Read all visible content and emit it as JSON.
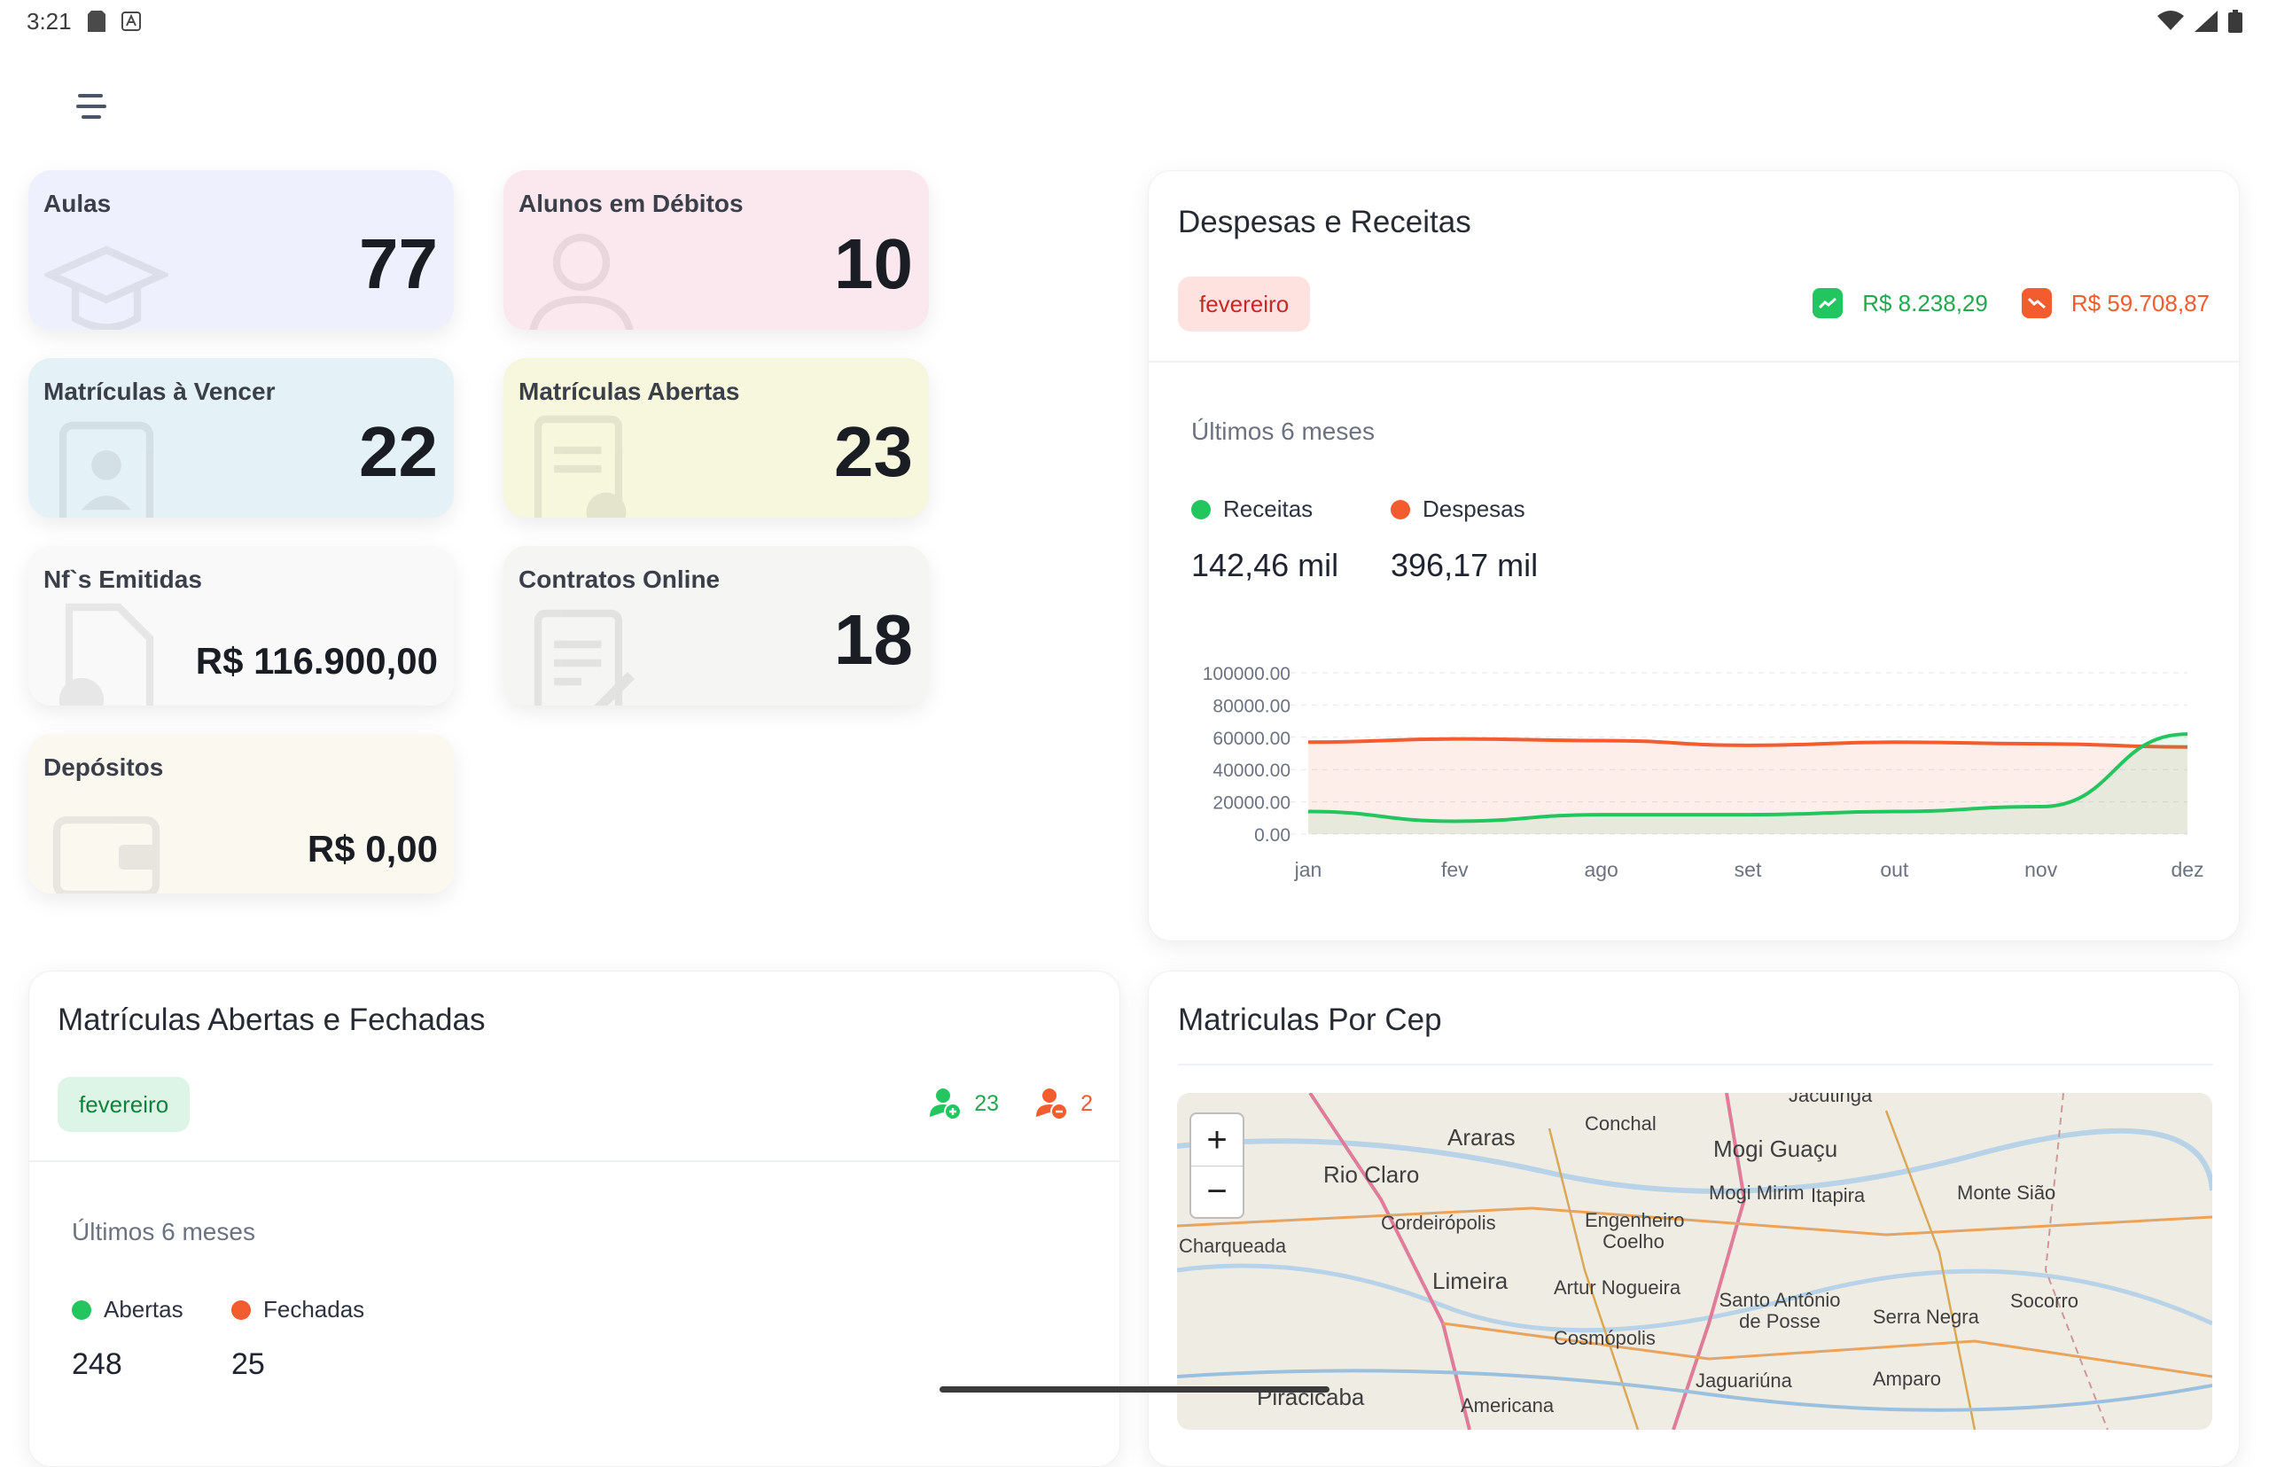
{
  "status_bar": {
    "time": "3:21"
  },
  "cards": [
    {
      "title": "Aulas",
      "value": "77",
      "icon": "graduation-cap-icon",
      "bg": "#eef1fd"
    },
    {
      "title": "Alunos em Débitos",
      "value": "10",
      "icon": "user-icon",
      "bg": "#fbe8ee"
    },
    {
      "title": "Matrículas à Vencer",
      "value": "22",
      "icon": "id-card-icon",
      "bg": "#e4f1f7"
    },
    {
      "title": "Matrículas Abertas",
      "value": "23",
      "icon": "document-add-icon",
      "bg": "#f6f7dc"
    },
    {
      "title": "Nf`s Emitidas",
      "value": "R$ 116.900,00",
      "icon": "invoice-icon",
      "bg": "#f9f9f9"
    },
    {
      "title": "Contratos Online",
      "value": "18",
      "icon": "contract-icon",
      "bg": "#f5f5f4"
    },
    {
      "title": "Depósitos",
      "value": "R$ 0,00",
      "icon": "wallet-icon",
      "bg": "#fbf8f0"
    }
  ],
  "finance": {
    "title": "Despesas e Receitas",
    "month": "fevereiro",
    "receita_value": "R$ 8.238,29",
    "despesa_value": "R$ 59.708,87",
    "subtitle": "Últimos 6 meses",
    "legend": [
      {
        "label": "Receitas",
        "total": "142,46 mil",
        "color": "#22c55e"
      },
      {
        "label": "Despesas",
        "total": "396,17 mil",
        "color": "#f25c2f"
      }
    ]
  },
  "chart_data": {
    "type": "area",
    "categories": [
      "jan",
      "fev",
      "ago",
      "set",
      "out",
      "nov",
      "dez"
    ],
    "y_ticks": [
      "100000.00",
      "80000.00",
      "60000.00",
      "40000.00",
      "20000.00",
      "0.00"
    ],
    "ylim": [
      0,
      100000
    ],
    "grid": true,
    "series": [
      {
        "name": "Receitas",
        "color": "#22c55e",
        "values": [
          14000,
          8000,
          12000,
          12000,
          14000,
          17000,
          62000
        ]
      },
      {
        "name": "Despesas",
        "color": "#f25c2f",
        "values": [
          57000,
          59000,
          58000,
          55000,
          57000,
          56000,
          54000
        ]
      }
    ]
  },
  "enrollments": {
    "title": "Matrículas Abertas e Fechadas",
    "month": "fevereiro",
    "open_count": "23",
    "closed_count": "2",
    "subtitle": "Últimos 6 meses",
    "legend": [
      {
        "label": "Abertas",
        "total": "248",
        "color": "#22c55e"
      },
      {
        "label": "Fechadas",
        "total": "25",
        "color": "#f25c2f"
      }
    ]
  },
  "map": {
    "title": "Matriculas Por Cep",
    "zoom_in": "+",
    "zoom_out": "−",
    "places": [
      "Araras",
      "Conchal",
      "Mogi Guaçu",
      "Rio Claro",
      "Mogi Mirim",
      "Itapira",
      "Monte Sião",
      "Cordeirópolis",
      "Engenheiro Coelho",
      "Charqueada",
      "Limeira",
      "Artur Nogueira",
      "Santo Antônio de Posse",
      "Serra Negra",
      "Socorro",
      "Cosmópolis",
      "Jaguariúna",
      "Amparo",
      "Piracicaba",
      "Americana",
      "Jacutinga"
    ]
  }
}
